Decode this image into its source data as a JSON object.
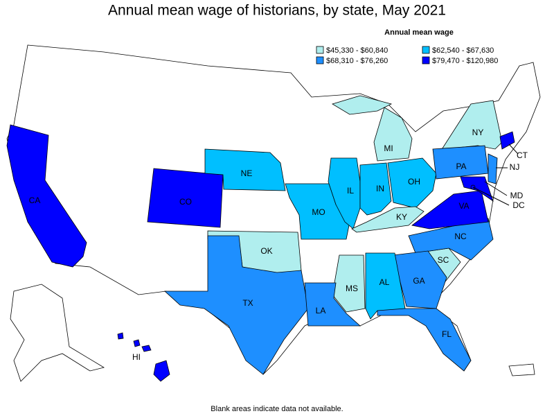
{
  "title": "Annual mean wage of historians, by state, May 2021",
  "legend": {
    "title": "Annual mean wage",
    "items": [
      {
        "label": "$45,330 - $60,840",
        "color": "#b0eeee"
      },
      {
        "label": "$62,540 - $67,630",
        "color": "#00bfff"
      },
      {
        "label": "$68,310 - $76,260",
        "color": "#1e8fff"
      },
      {
        "label": "$79,470 - $120,980",
        "color": "#0000ff"
      }
    ]
  },
  "states": [
    {
      "label": "CA",
      "color": "#0000ff"
    },
    {
      "label": "CO",
      "color": "#0000ff"
    },
    {
      "label": "NE",
      "color": "#00bfff"
    },
    {
      "label": "MO",
      "color": "#00bfff"
    },
    {
      "label": "IL",
      "color": "#00bfff"
    },
    {
      "label": "IN",
      "color": "#00bfff"
    },
    {
      "label": "OH",
      "color": "#00bfff"
    },
    {
      "label": "MI",
      "color": "#b0eeee"
    },
    {
      "label": "NY",
      "color": "#b0eeee"
    },
    {
      "label": "KY",
      "color": "#b0eeee"
    },
    {
      "label": "OK",
      "color": "#b0eeee"
    },
    {
      "label": "MS",
      "color": "#b0eeee"
    },
    {
      "label": "SC",
      "color": "#b0eeee"
    },
    {
      "label": "PA",
      "color": "#1e8fff"
    },
    {
      "label": "NJ",
      "color": "#1e8fff"
    },
    {
      "label": "NC",
      "color": "#1e8fff"
    },
    {
      "label": "GA",
      "color": "#1e8fff"
    },
    {
      "label": "FL",
      "color": "#1e8fff"
    },
    {
      "label": "TX",
      "color": "#1e8fff"
    },
    {
      "label": "LA",
      "color": "#1e8fff"
    },
    {
      "label": "AL",
      "color": "#00bfff"
    },
    {
      "label": "VA",
      "color": "#0000ff"
    },
    {
      "label": "MD",
      "color": "#0000ff"
    },
    {
      "label": "DC",
      "color": "#0000ff"
    },
    {
      "label": "CT",
      "color": "#0000ff"
    },
    {
      "label": "HI",
      "color": "#0000ff"
    }
  ],
  "footnote": "Blank areas indicate data not available."
}
